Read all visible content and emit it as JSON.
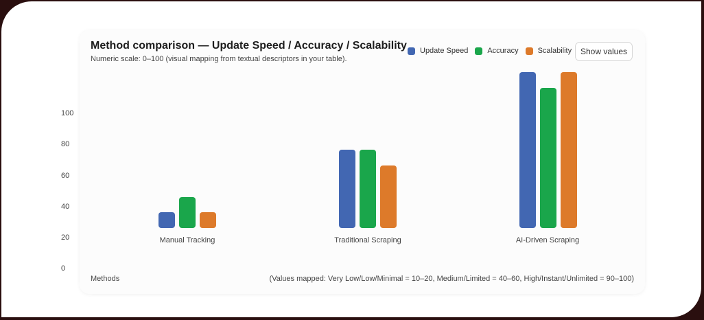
{
  "chart": {
    "title": "Method comparison — Update Speed / Accuracy / Scalability",
    "subtitle": "Numeric scale: 0–100 (visual mapping from textual descriptors in your table).",
    "show_values_label": "Show values",
    "xlabel": "Methods",
    "note": "(Values mapped: Very Low/Low/Minimal = 10–20, Medium/Limited = 40–60, High/Instant/Unlimited = 90–100)",
    "y_ticks": [
      "100",
      "80",
      "60",
      "40",
      "20",
      "0"
    ],
    "legend": [
      {
        "name": "Update Speed",
        "color": "#4267b2"
      },
      {
        "name": "Accuracy",
        "color": "#1aa64b"
      },
      {
        "name": "Scalability",
        "color": "#dd7a2a"
      }
    ]
  },
  "chart_data": {
    "type": "bar",
    "title": "Method comparison — Update Speed / Accuracy / Scalability",
    "subtitle": "Numeric scale: 0–100 (visual mapping from textual descriptors in your table).",
    "xlabel": "Methods",
    "ylabel": "",
    "ylim": [
      0,
      100
    ],
    "y_ticks": [
      0,
      20,
      40,
      60,
      80,
      100
    ],
    "grid": false,
    "legend_position": "top-right",
    "categories": [
      "Manual Tracking",
      "Traditional Scraping",
      "AI-Driven Scraping"
    ],
    "series": [
      {
        "name": "Update Speed",
        "color": "#4267b2",
        "values": [
          10,
          50,
          100
        ]
      },
      {
        "name": "Accuracy",
        "color": "#1aa64b",
        "values": [
          20,
          50,
          90
        ]
      },
      {
        "name": "Scalability",
        "color": "#dd7a2a",
        "values": [
          10,
          40,
          100
        ]
      }
    ],
    "annotations": [
      "(Values mapped: Very Low/Low/Minimal = 10–20, Medium/Limited = 40–60, High/Instant/Unlimited = 90–100)"
    ]
  }
}
